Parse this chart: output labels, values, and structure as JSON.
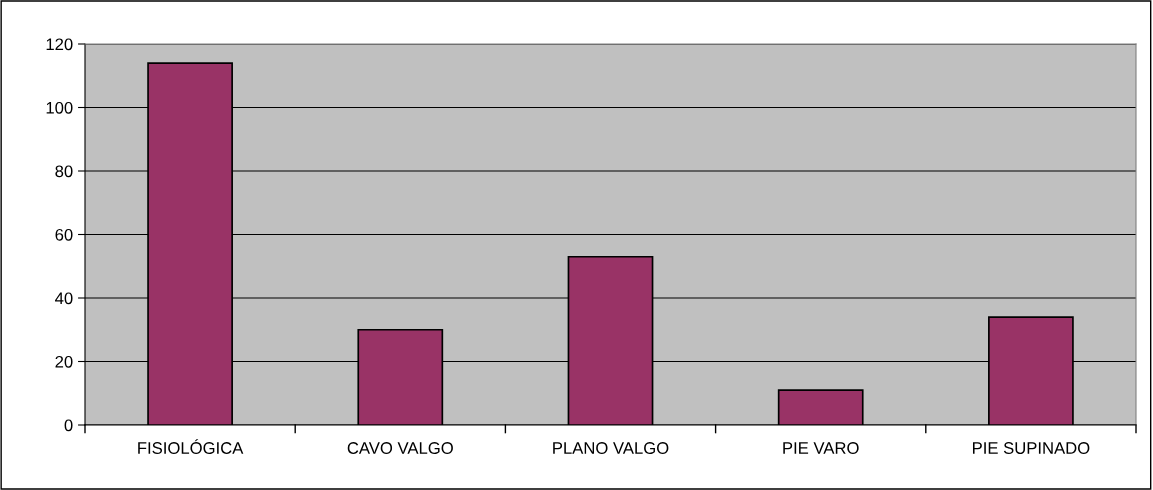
{
  "chart_data": {
    "type": "bar",
    "categories": [
      "FISIOLÓGICA",
      "CAVO VALGO",
      "PLANO VALGO",
      "PIE VARO",
      "PIE SUPINADO"
    ],
    "values": [
      114,
      30,
      53,
      11,
      34
    ],
    "color": "#993366",
    "ylim": [
      0,
      120
    ],
    "yticks": [
      0,
      20,
      40,
      60,
      80,
      100,
      120
    ],
    "grid": "y"
  }
}
